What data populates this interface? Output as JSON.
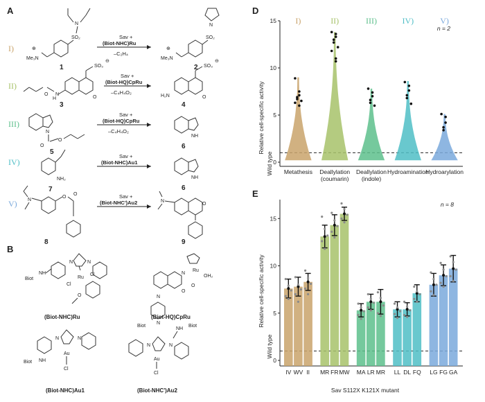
{
  "panels": {
    "a": "A",
    "b": "B",
    "d": "D",
    "e": "E"
  },
  "reactions": [
    {
      "roman": "I)",
      "color": "#c9a36b",
      "reagent_top": "Sav +",
      "reagent_catalyst": "(Biot-NHC)Ru",
      "reagent_bottom": "–C₂H₄",
      "substrate_number": "1",
      "product_number": "2"
    },
    {
      "roman": "II)",
      "color": "#a7c26a",
      "reagent_top": "Sav +",
      "reagent_catalyst": "(Biot-HQ)CpRu",
      "reagent_bottom": "–C₄H₄O₂",
      "substrate_number": "3",
      "product_number": "4"
    },
    {
      "roman": "III)",
      "color": "#5dbf8c",
      "reagent_top": "Sav +",
      "reagent_catalyst": "(Biot-HQ)CpRu",
      "reagent_bottom": "–C₄H₄O₂",
      "substrate_number": "5",
      "product_number": "6"
    },
    {
      "roman": "IV)",
      "color": "#4fbec6",
      "reagent_top": "Sav +",
      "reagent_catalyst": "(Biot-NHC)Au1",
      "reagent_bottom": "",
      "substrate_number": "7",
      "product_number": "6"
    },
    {
      "roman": "V)",
      "color": "#7aa9dc",
      "reagent_top": "Sav +",
      "reagent_catalyst": "(Biot-NHC')Au2",
      "reagent_bottom": "",
      "substrate_number": "8",
      "product_number": "9"
    }
  ],
  "chem_labels": {
    "nme3": "Me₃N",
    "so2": "SO₂",
    "so3": "SO₃",
    "nh2": "NH₂",
    "h2n": "H₂N",
    "o": "O",
    "n": "N",
    "nh": "NH",
    "h": "H",
    "plus": "⊕",
    "minus": "⊖"
  },
  "catalysts": [
    {
      "name": "(Biot-NHC)Ru",
      "atoms": [
        "Biot",
        "NH",
        "N",
        "N",
        "Cl",
        "Ru",
        "Cl",
        "O"
      ]
    },
    {
      "name": "(Biot-HQ)CpRu",
      "atoms": [
        "Biot",
        "N",
        "N",
        "N",
        "O",
        "Ru",
        "OH₂",
        "O"
      ]
    },
    {
      "name": "(Biot-NHC)Au1",
      "atoms": [
        "Biot",
        "NH",
        "N",
        "N",
        "Au",
        "Cl"
      ]
    },
    {
      "name": "(Biot-NHC')Au2",
      "atoms": [
        "Biot",
        "NH",
        "N",
        "N",
        "Au",
        "Cl"
      ]
    }
  ],
  "chart_d": {
    "type": "violin",
    "ylabel": "Relative cell-specific activity",
    "baseline_label": "Wild type",
    "annotation": "n = 2",
    "ylim": [
      0,
      15
    ],
    "yticks": [
      0,
      5,
      10,
      15
    ],
    "series": [
      {
        "group": "I)",
        "category": "Metathesis",
        "sublabel": "",
        "color": "#c9a36b",
        "max": 9.0,
        "points": [
          8.9,
          7.5,
          7.1,
          6.9,
          6.7,
          6.5,
          6.3,
          6.0
        ]
      },
      {
        "group": "II)",
        "category": "Deallylation",
        "sublabel": "(coumarin)",
        "color": "#a7c26a",
        "max": 13.8,
        "points": [
          13.8,
          13.6,
          13.3,
          13.0,
          12.7,
          12.2,
          11.8,
          11.0,
          10.7
        ]
      },
      {
        "group": "III)",
        "category": "Deallylation",
        "sublabel": "(indole)",
        "color": "#5dbf8c",
        "max": 7.8,
        "points": [
          7.8,
          7.4,
          7.0,
          6.6,
          6.3,
          6.0
        ]
      },
      {
        "group": "IV)",
        "category": "Hydroamination",
        "sublabel": "",
        "color": "#4fbec6",
        "max": 8.6,
        "points": [
          8.5,
          8.1,
          7.6,
          7.1,
          6.8,
          6.2
        ]
      },
      {
        "group": "V)",
        "category": "Hydroarylation",
        "sublabel": "",
        "color": "#7aa9dc",
        "max": 5.1,
        "points": [
          5.1,
          4.8,
          4.2,
          3.7,
          3.4
        ]
      }
    ]
  },
  "chart_e": {
    "type": "bar",
    "xlabel": "Sav S112X K121X mutant",
    "ylabel": "Relative cell-specific activity",
    "baseline_label": "Wild type",
    "annotation": "n = 8",
    "ylim": [
      0,
      17
    ],
    "yticks": [
      0,
      5,
      10,
      15
    ],
    "bars": [
      {
        "label": "IV",
        "value": 7.6,
        "err": 1.0,
        "color": "#c9a36b",
        "points": [
          8.6,
          7.9,
          7.4,
          6.8,
          6.5
        ]
      },
      {
        "label": "WV",
        "value": 7.8,
        "err": 1.0,
        "color": "#c9a36b",
        "points": [
          8.8,
          8.0,
          7.5,
          7.0,
          6.2
        ]
      },
      {
        "label": "II",
        "value": 8.3,
        "err": 0.9,
        "color": "#c9a36b",
        "points": [
          9.5,
          8.7,
          8.1,
          7.6,
          7.0
        ]
      },
      {
        "label": "MR",
        "value": 13.1,
        "err": 1.2,
        "color": "#a7c26a",
        "points": [
          15.2,
          13.9,
          13.2,
          12.6,
          11.8
        ]
      },
      {
        "label": "FR",
        "value": 14.3,
        "err": 1.1,
        "color": "#a7c26a",
        "points": [
          15.6,
          14.8,
          14.2,
          13.6,
          13.0
        ]
      },
      {
        "label": "MW",
        "value": 15.5,
        "err": 0.7,
        "color": "#a7c26a",
        "points": [
          16.6,
          16.0,
          15.4,
          15.0,
          14.6
        ]
      },
      {
        "label": "MA",
        "value": 5.3,
        "err": 0.7,
        "color": "#5dbf8c",
        "points": [
          6.0,
          5.6,
          5.2,
          4.8,
          4.4
        ]
      },
      {
        "label": "LR",
        "value": 6.2,
        "err": 0.8,
        "color": "#5dbf8c",
        "points": [
          7.0,
          6.5,
          6.1,
          5.6,
          5.3
        ]
      },
      {
        "label": "MR",
        "value": 6.2,
        "err": 1.3,
        "color": "#5dbf8c",
        "points": [
          7.2,
          6.6,
          5.8,
          5.0,
          4.7
        ]
      },
      {
        "label": "LL",
        "value": 5.4,
        "err": 0.8,
        "color": "#4fbec6",
        "points": [
          6.0,
          5.6,
          5.2,
          4.9,
          4.5
        ]
      },
      {
        "label": "DL",
        "value": 5.4,
        "err": 0.7,
        "color": "#4fbec6",
        "points": [
          6.2,
          5.7,
          5.3,
          4.8,
          4.6
        ]
      },
      {
        "label": "FQ",
        "value": 7.1,
        "err": 0.9,
        "color": "#4fbec6",
        "points": [
          7.8,
          7.3,
          7.0,
          6.5,
          6.2
        ]
      },
      {
        "label": "LG",
        "value": 8.0,
        "err": 1.2,
        "color": "#7aa9dc",
        "points": [
          9.3,
          8.6,
          8.0,
          7.3,
          6.9
        ]
      },
      {
        "label": "FG",
        "value": 9.0,
        "err": 1.1,
        "color": "#7aa9dc",
        "points": [
          10.3,
          9.6,
          8.9,
          8.2,
          7.8
        ]
      },
      {
        "label": "GA",
        "value": 9.7,
        "err": 1.4,
        "color": "#7aa9dc",
        "points": [
          11.0,
          10.4,
          9.6,
          8.9,
          8.4
        ]
      }
    ]
  }
}
